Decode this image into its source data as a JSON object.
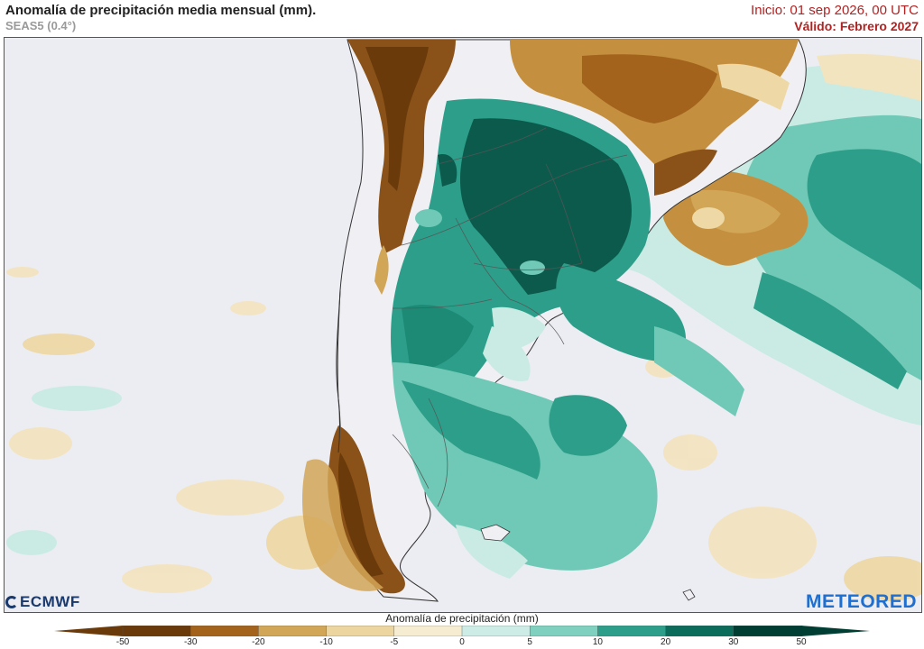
{
  "header": {
    "title": "Anomalía de precipitación media mensual (mm).",
    "subtitle": "SEAS5 (0.4°)",
    "init": "Inicio: 01 sep 2026, 00 UTC",
    "valid": "Válido: Febrero 2027"
  },
  "logos": {
    "left": "ECMWF",
    "right": "METEORED"
  },
  "legend": {
    "title": "Anomalía de precipitación (mm)",
    "ticks": [
      "-50",
      "-30",
      "-20",
      "-10",
      "-5",
      "0",
      "5",
      "10",
      "20",
      "30",
      "50"
    ],
    "colors": [
      "#6b3a0a",
      "#a3631c",
      "#d2a657",
      "#ecd59f",
      "#f6ecd2",
      "#ececf3",
      "#cdece5",
      "#7fd0bf",
      "#2d9e8a",
      "#0b6c5c",
      "#003e33"
    ]
  },
  "colors": {
    "ocean_neutral": "#ececf3",
    "dry_strong": "#8a5218",
    "dry_moderate": "#c4903f",
    "dry_light": "#eed9a6",
    "wet_light": "#c9ebe3",
    "wet_moderate": "#6fc9b6",
    "wet_strong": "#1d8a76",
    "wet_extreme": "#0c5a4c",
    "land_outline": "#333333"
  }
}
